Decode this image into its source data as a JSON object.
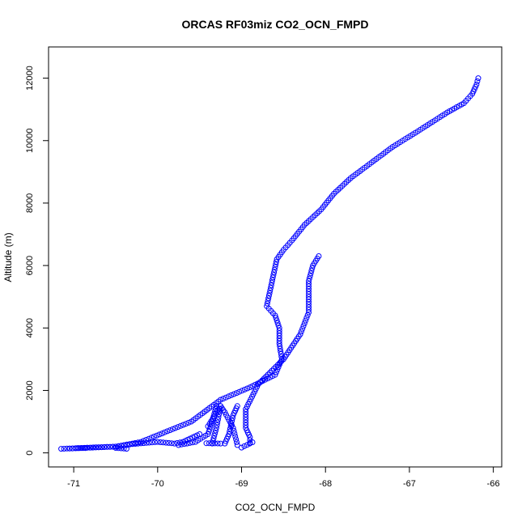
{
  "chart_data": {
    "type": "scatter",
    "title": "ORCAS RF03miz CO2_OCN_FMPD",
    "xlabel": "CO2_OCN_FMPD",
    "ylabel": "Altitude (m)",
    "xlim": [
      -71.3,
      -65.9
    ],
    "ylim": [
      -450,
      13000
    ],
    "xticks": [
      -71,
      -70,
      -69,
      -68,
      -67,
      -66
    ],
    "yticks": [
      0,
      2000,
      4000,
      6000,
      8000,
      10000,
      12000
    ],
    "point_color": "#0000ff",
    "marker": "open-circle",
    "grid": false,
    "path_segments": [
      [
        [
          -66.18,
          12000
        ],
        [
          -66.2,
          11800
        ],
        [
          -66.25,
          11500
        ],
        [
          -66.35,
          11200
        ],
        [
          -66.55,
          10900
        ],
        [
          -66.9,
          10300
        ],
        [
          -67.2,
          9800
        ],
        [
          -67.45,
          9300
        ],
        [
          -67.7,
          8800
        ],
        [
          -67.9,
          8300
        ],
        [
          -68.05,
          7800
        ],
        [
          -68.25,
          7300
        ],
        [
          -68.4,
          6800
        ],
        [
          -68.5,
          6500
        ],
        [
          -68.58,
          6200
        ],
        [
          -68.62,
          5700
        ],
        [
          -68.66,
          5200
        ],
        [
          -68.7,
          4700
        ],
        [
          -68.6,
          4400
        ],
        [
          -68.55,
          4000
        ],
        [
          -68.55,
          3500
        ],
        [
          -68.52,
          3000
        ],
        [
          -68.6,
          2500
        ],
        [
          -68.9,
          2100
        ],
        [
          -69.25,
          1700
        ],
        [
          -69.6,
          1000
        ],
        [
          -70.2,
          350
        ],
        [
          -70.5,
          200
        ],
        [
          -71.15,
          130
        ]
      ],
      [
        [
          -68.08,
          6300
        ],
        [
          -68.15,
          6000
        ],
        [
          -68.2,
          5500
        ],
        [
          -68.2,
          5000
        ],
        [
          -68.2,
          4500
        ],
        [
          -68.3,
          3800
        ],
        [
          -68.5,
          3000
        ],
        [
          -68.8,
          2200
        ],
        [
          -68.95,
          1400
        ],
        [
          -68.95,
          800
        ],
        [
          -68.9,
          500
        ],
        [
          -68.9,
          320
        ]
      ],
      [
        [
          -69.05,
          250
        ],
        [
          -69.1,
          800
        ],
        [
          -69.2,
          1300
        ],
        [
          -69.25,
          1500
        ],
        [
          -69.3,
          800
        ],
        [
          -69.35,
          300
        ]
      ],
      [
        [
          -69.05,
          1500
        ],
        [
          -69.1,
          1200
        ],
        [
          -69.15,
          600
        ],
        [
          -69.2,
          300
        ]
      ],
      [
        [
          -69.3,
          1500
        ],
        [
          -69.35,
          1000
        ],
        [
          -69.4,
          600
        ],
        [
          -69.55,
          350
        ],
        [
          -69.75,
          250
        ]
      ],
      [
        [
          -69.5,
          600
        ],
        [
          -69.7,
          350
        ],
        [
          -69.8,
          300
        ],
        [
          -70.0,
          350
        ],
        [
          -70.3,
          280
        ],
        [
          -70.5,
          200
        ],
        [
          -70.8,
          170
        ],
        [
          -71.05,
          140
        ]
      ],
      [
        [
          -70.37,
          130
        ],
        [
          -70.5,
          160
        ]
      ],
      [
        [
          -70.86,
          155
        ],
        [
          -70.96,
          150
        ]
      ],
      [
        [
          -69.42,
          310
        ],
        [
          -69.25,
          300
        ]
      ],
      [
        [
          -69.0,
          170
        ],
        [
          -68.87,
          340
        ]
      ],
      [
        [
          -69.4,
          850
        ],
        [
          -69.25,
          1500
        ]
      ]
    ]
  }
}
